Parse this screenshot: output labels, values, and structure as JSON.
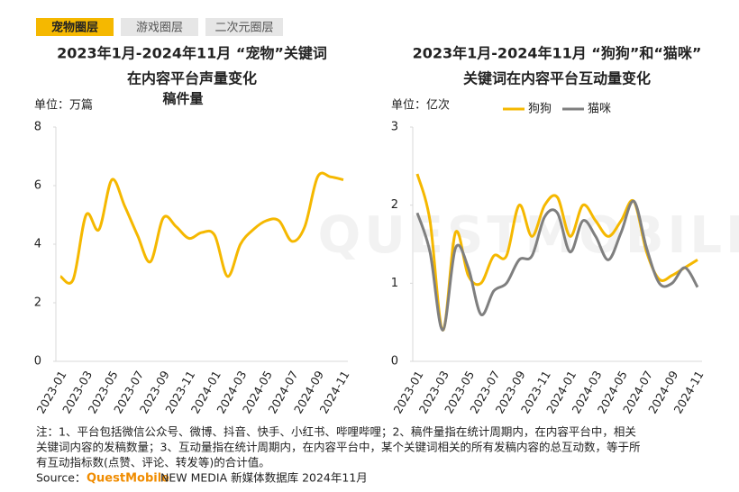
{
  "tabs": [
    "宠物圈层",
    "游戏圈层",
    "二次元圈层"
  ],
  "chart_data": [
    {
      "type": "line",
      "title": [
        "2023年1月-2024年11月 “宠物”关键词",
        "在内容平台声量变化"
      ],
      "subtitle": "稿件量",
      "unit": "单位：万篇",
      "categories": [
        "2023-01",
        null,
        "2023-03",
        null,
        "2023-05",
        null,
        "2023-07",
        null,
        "2023-09",
        null,
        "2023-11",
        null,
        "2024-01",
        null,
        "2024-03",
        null,
        "2024-05",
        null,
        "2024-07",
        null,
        "2024-09",
        null,
        "2024-11"
      ],
      "values": [
        2.9,
        2.8,
        5.0,
        4.5,
        6.2,
        5.3,
        4.3,
        3.4,
        4.9,
        4.6,
        4.2,
        4.4,
        4.3,
        2.9,
        4.0,
        4.5,
        4.8,
        4.8,
        4.1,
        4.6,
        6.3,
        6.3,
        6.2
      ],
      "color": "#f5b800",
      "ylim": [
        0,
        8
      ],
      "yticks": [
        0,
        2,
        4,
        6,
        8
      ]
    },
    {
      "type": "line",
      "title": [
        "2023年1月-2024年11月 “狗狗”和“猫咪”",
        "关键词在内容平台互动量变化"
      ],
      "unit": "单位：亿次",
      "categories": [
        "2023-01",
        null,
        "2023-03",
        null,
        "2023-05",
        null,
        "2023-07",
        null,
        "2023-09",
        null,
        "2023-11",
        null,
        "2024-01",
        null,
        "2024-03",
        null,
        "2024-05",
        null,
        "2024-07",
        null,
        "2024-09",
        null,
        "2024-11"
      ],
      "series": [
        {
          "name": "狗狗",
          "color": "#f5b800",
          "values": [
            2.4,
            1.8,
            0.4,
            1.65,
            1.1,
            1.0,
            1.35,
            1.35,
            2.0,
            1.6,
            2.0,
            2.1,
            1.6,
            2.0,
            1.8,
            1.6,
            1.8,
            2.05,
            1.4,
            1.05,
            1.1,
            1.2,
            1.3
          ]
        },
        {
          "name": "猫咪",
          "color": "#7f7f7f",
          "values": [
            1.9,
            1.4,
            0.4,
            1.45,
            1.2,
            0.6,
            0.9,
            1.0,
            1.3,
            1.35,
            1.85,
            1.9,
            1.4,
            1.8,
            1.6,
            1.3,
            1.65,
            2.05,
            1.45,
            1.0,
            1.0,
            1.2,
            0.95
          ]
        }
      ],
      "ylim": [
        0,
        3
      ],
      "yticks": [
        0,
        1,
        2,
        3
      ]
    }
  ],
  "watermark": "QUESTMOBILE",
  "note": [
    "注：1、平台包括微信公众号、微博、抖音、快手、小红书、哔哩哔哩；2、稿件量指在统计周期内，在内容平台中，相关",
    "关键词内容的发稿数量；3、互动量指在统计周期内，在内容平台中，某个关键词相关的所有发稿内容的总互动数，等于所",
    "有互动指标数(点赞、评论、转发等)的合计值。"
  ],
  "source": {
    "label": "Source：",
    "brand": "QuestMobile",
    "text": "NEW MEDIA 新媒体数据库 2024年11月"
  }
}
